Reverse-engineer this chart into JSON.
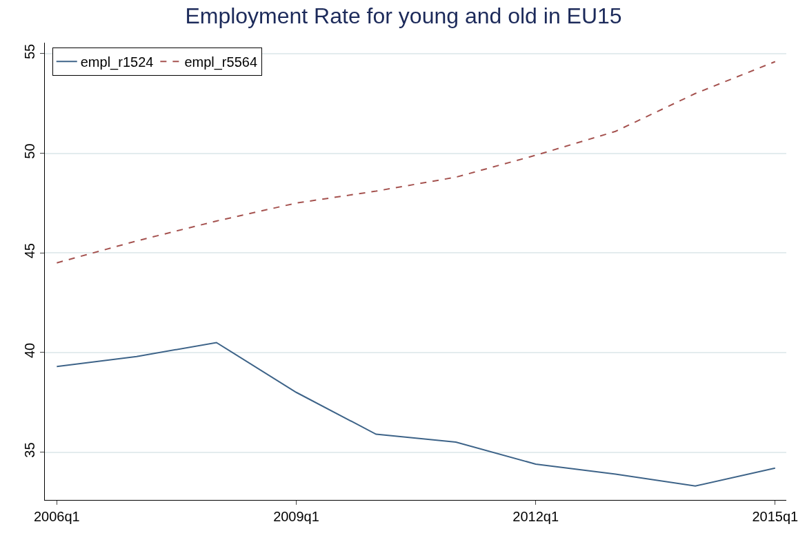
{
  "chart_data": {
    "type": "line",
    "title": "Employment Rate for young and old in EU15",
    "categories": [
      "2006q1",
      null,
      null,
      "2009q1",
      null,
      null,
      "2012q1",
      null,
      null,
      "2015q1"
    ],
    "series": [
      {
        "name": "empl_r1524",
        "color": "#3d6388",
        "line_style": "solid",
        "values": [
          39.3,
          39.8,
          40.5,
          38.0,
          35.9,
          35.5,
          34.4,
          33.9,
          33.3,
          34.2
        ]
      },
      {
        "name": "empl_r5564",
        "color": "#a5524f",
        "line_style": "dashed",
        "values": [
          44.5,
          45.6,
          46.6,
          47.5,
          48.1,
          48.8,
          49.9,
          51.1,
          53.0,
          54.6
        ]
      }
    ],
    "ylim": [
      32.6,
      55.55
    ],
    "yticks": [
      35,
      40,
      45,
      50,
      55
    ],
    "grid": "y",
    "legend": "top left",
    "marker": "none"
  }
}
